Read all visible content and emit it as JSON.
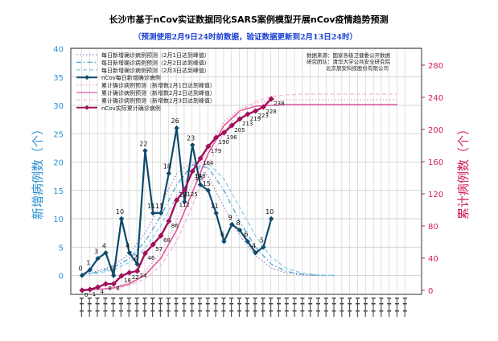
{
  "chart_data": {
    "type": "line",
    "title": "长沙市基于nCov实证数据同化SARS案例模型开展nCov疫情趋势预测",
    "subtitle": "（预测使用2月9日24时前数据，验证数据更新到2月13日24时）",
    "ylabel_left": "新增病例数（个）",
    "ylabel_right": "累计病例数（个）",
    "ylim_left": [
      -1,
      40
    ],
    "yticks_left": [
      0,
      5,
      10,
      15,
      20,
      25,
      30,
      35,
      40
    ],
    "ylim_right": [
      -8,
      300
    ],
    "yticks_right": [
      0,
      40,
      80,
      120,
      160,
      200,
      240,
      280
    ],
    "grid": true,
    "x_count": 42,
    "x_tick_labels": "unreadable (rotated date labels)",
    "source_text": [
      "数据来源：国家各级卫健委公开数据",
      "研究团队：清华大学公共安全研究院",
      "北京辰安科技股份有限公司"
    ],
    "legend": {
      "placement": "top-left",
      "entries": [
        {
          "label": "每日新增确诊病例预测（2月1日达到峰值）",
          "color": "#9b87c2",
          "style": "dotted",
          "marker": ""
        },
        {
          "label": "每日新增确诊病例预测（2月2日达到峰值）",
          "color": "#4aa3d9",
          "style": "dashdot",
          "marker": ""
        },
        {
          "label": "每日新增确诊病例预测（2月3日达到峰值）",
          "color": "#8fcbe6",
          "style": "dashed",
          "marker": ""
        },
        {
          "label": "nCov每日新增确诊病例",
          "color": "#0d4a6b",
          "style": "solid",
          "marker": "diamond"
        },
        {
          "label": "累计确诊病例预测（新增数2月1日达到峰值）",
          "color": "#e7a0c6",
          "style": "dotted",
          "marker": ""
        },
        {
          "label": "累计确诊病例预测（新增数2月2日达到峰值）",
          "color": "#e0559a",
          "style": "solid",
          "marker": ""
        },
        {
          "label": "累计确诊病例预测（新增数2月3日达到峰值）",
          "color": "#f3b9d6",
          "style": "dashed",
          "marker": ""
        },
        {
          "label": "nCov实际累计确诊病例",
          "color": "#a0105a",
          "style": "solid",
          "marker": "diamond"
        }
      ]
    },
    "series": [
      {
        "name": "nCov每日新增确诊病例",
        "axis": "left",
        "color": "#0d4a6b",
        "x": [
          0,
          1,
          2,
          3,
          4,
          5,
          6,
          7,
          8,
          9,
          10,
          11,
          12,
          13,
          14,
          15,
          16,
          17,
          18,
          19,
          20,
          21,
          22,
          23,
          24,
          25,
          26,
          27,
          28,
          29,
          30,
          31
        ],
        "values": [
          0,
          1,
          3,
          4,
          0,
          10,
          4,
          2,
          22,
          11,
          11,
          18,
          26,
          13,
          23,
          16,
          15,
          11,
          6,
          9,
          8,
          6,
          4,
          5,
          10,
          null,
          null,
          null,
          null,
          null,
          null,
          null
        ],
        "labels": [
          0,
          1,
          3,
          4,
          0,
          10,
          4,
          2,
          22,
          11,
          11,
          18,
          26,
          13,
          23,
          16,
          15,
          11,
          6,
          9,
          8,
          6,
          4,
          5,
          10
        ]
      },
      {
        "name": "nCov实际累计确诊病例",
        "axis": "right",
        "x": [
          0,
          1,
          2,
          3,
          4,
          5,
          6,
          7,
          8,
          9,
          10,
          11,
          12,
          13,
          14,
          15,
          16,
          17,
          18,
          19,
          20,
          21,
          22,
          23,
          24
        ],
        "values": [
          0,
          1,
          4,
          8,
          8,
          18,
          22,
          24,
          46,
          57,
          68,
          86,
          112,
          125,
          148,
          164,
          179,
          190,
          196,
          205,
          213,
          219,
          223,
          228,
          238
        ],
        "labels": [
          0,
          1,
          4,
          8,
          8,
          18,
          22,
          24,
          46,
          57,
          68,
          86,
          112,
          125,
          148,
          164,
          179,
          190,
          196,
          205,
          213,
          219,
          223,
          228,
          238
        ]
      },
      {
        "name": "每日新增确诊病例预测（2月1日达到峰值）",
        "axis": "left",
        "x": [
          0,
          2,
          4,
          6,
          8,
          10,
          12,
          14,
          16,
          18,
          20,
          22,
          24,
          26,
          28,
          30,
          32
        ],
        "values": [
          0.3,
          0.8,
          1.8,
          3.8,
          7.5,
          12.5,
          18,
          20,
          17.5,
          12,
          7,
          3.5,
          1.3,
          0.4,
          0.1,
          0,
          0
        ]
      },
      {
        "name": "每日新增确诊病例预测（2月2日达到峰值）",
        "axis": "left",
        "x": [
          0,
          2,
          4,
          6,
          8,
          10,
          12,
          14,
          16,
          18,
          20,
          22,
          24,
          26,
          28,
          30,
          32
        ],
        "values": [
          0.2,
          0.6,
          1.4,
          3,
          6,
          10.5,
          16,
          19.5,
          19,
          15,
          9.5,
          5,
          2,
          0.7,
          0.2,
          0,
          0
        ]
      },
      {
        "name": "每日新增确诊病例预测（2月3日达到峰值）",
        "axis": "left",
        "x": [
          0,
          2,
          4,
          6,
          8,
          10,
          12,
          14,
          16,
          18,
          20,
          22,
          24,
          26,
          28,
          30,
          32
        ],
        "values": [
          0.1,
          0.4,
          1,
          2.3,
          4.8,
          8.8,
          14,
          18.5,
          19.8,
          17,
          12,
          7,
          3.2,
          1.2,
          0.4,
          0.1,
          0
        ]
      },
      {
        "name": "累计确诊病例预测（新增数2月1日达到峰值）",
        "axis": "right",
        "x": [
          0,
          2,
          4,
          6,
          8,
          10,
          12,
          14,
          16,
          18,
          20,
          22,
          24,
          26,
          28,
          30,
          32,
          34,
          36,
          38,
          40
        ],
        "values": [
          0,
          1,
          4,
          10,
          23,
          48,
          87,
          134,
          178,
          210,
          226,
          233,
          236,
          237,
          237,
          237,
          237,
          237,
          237,
          237,
          237
        ]
      },
      {
        "name": "累计确诊病例预测（新增数2月2日达到峰值）",
        "axis": "right",
        "x": [
          0,
          2,
          4,
          6,
          8,
          10,
          12,
          14,
          16,
          18,
          20,
          22,
          24,
          26,
          28,
          30,
          32,
          34,
          36,
          38,
          40
        ],
        "values": [
          0,
          1,
          3,
          8,
          19,
          40,
          75,
          122,
          170,
          205,
          223,
          229,
          230,
          231,
          231,
          231,
          231,
          231,
          231,
          231,
          231
        ]
      },
      {
        "name": "累计确诊病例预测（新增数2月3日达到峰值）",
        "axis": "right",
        "x": [
          0,
          2,
          4,
          6,
          8,
          10,
          12,
          14,
          16,
          18,
          20,
          22,
          24,
          26,
          28,
          30,
          32,
          34,
          36,
          38,
          40
        ],
        "values": [
          0,
          0.5,
          2,
          6,
          14,
          31,
          61,
          105,
          155,
          197,
          222,
          235,
          241,
          243,
          244,
          244,
          244,
          244,
          244,
          244,
          244
        ]
      }
    ]
  }
}
